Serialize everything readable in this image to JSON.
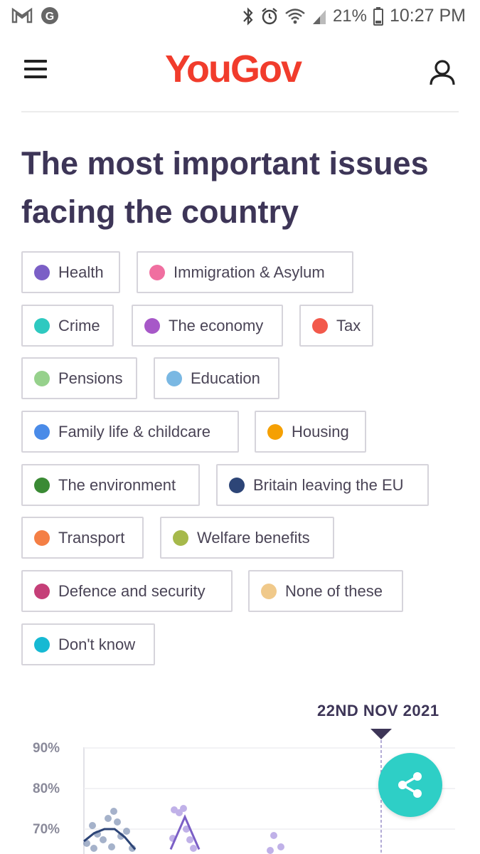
{
  "status_bar": {
    "battery_percent": "21%",
    "time": "10:27 PM",
    "icons": [
      "gmail-icon",
      "app-icon",
      "bluetooth-icon",
      "alarm-icon",
      "wifi-icon",
      "signal-icon",
      "battery-icon"
    ]
  },
  "header": {
    "logo_text": "YouGov",
    "logo_color": "#f13c2c"
  },
  "page": {
    "title": "The most important issues facing the country"
  },
  "filters": [
    {
      "label": "Health",
      "color": "#7b5fc6"
    },
    {
      "label": "Immigration & Asylum",
      "color": "#f06fa0"
    },
    {
      "label": "Crime",
      "color": "#2ec9c0"
    },
    {
      "label": "The economy",
      "color": "#a758c8"
    },
    {
      "label": "Tax",
      "color": "#f2594b"
    },
    {
      "label": "Pensions",
      "color": "#96d18c"
    },
    {
      "label": "Education",
      "color": "#7ab8e3"
    },
    {
      "label": "Family life & childcare",
      "color": "#4a8be8"
    },
    {
      "label": "Housing",
      "color": "#f5a003"
    },
    {
      "label": "The environment",
      "color": "#3a8a34"
    },
    {
      "label": "Britain leaving the EU",
      "color": "#2d4577"
    },
    {
      "label": "Transport",
      "color": "#f47f45"
    },
    {
      "label": "Welfare benefits",
      "color": "#a6b94b"
    },
    {
      "label": "Defence and security",
      "color": "#c53f78"
    },
    {
      "label": "None of these",
      "color": "#f0c98a"
    },
    {
      "label": "Don't know",
      "color": "#16b9d3"
    }
  ],
  "chart_data": {
    "type": "line",
    "date_marker": "22ND NOV 2021",
    "y_ticks": [
      "90%",
      "80%",
      "70%"
    ],
    "ylim": [
      65,
      90
    ],
    "series": [
      {
        "name": "Britain leaving the EU",
        "color": "#2d4577",
        "values": [
          67,
          69,
          70,
          70,
          68,
          65
        ]
      },
      {
        "name": "Health",
        "color": "#7b5fc6",
        "values": [
          65,
          73,
          65
        ]
      }
    ]
  },
  "share": {
    "icon": "share-icon"
  }
}
